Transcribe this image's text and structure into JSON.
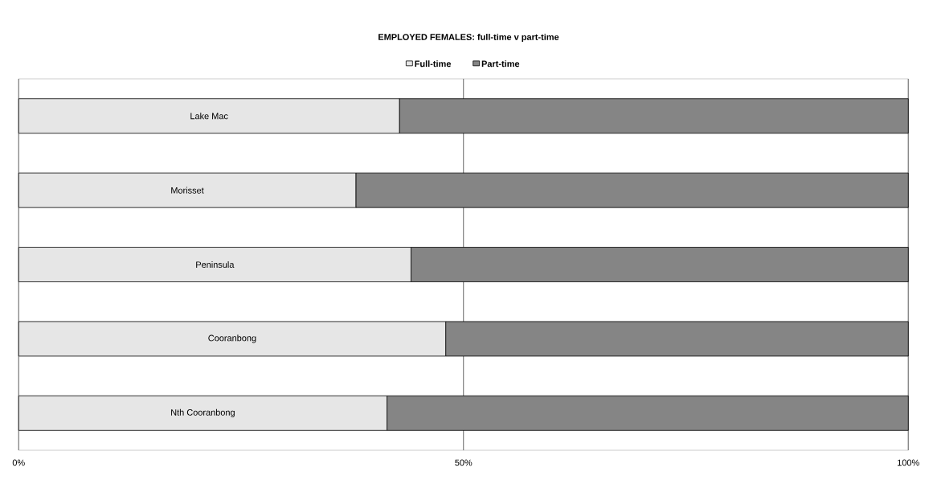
{
  "chart_data": {
    "type": "bar",
    "orientation": "horizontal",
    "stacked": true,
    "title": "EMPLOYED FEMALES:  full-time v part-time",
    "categories": [
      "Lake Mac",
      "Morisset",
      "Peninsula",
      "Cooranbong",
      "Nth Cooranbong"
    ],
    "series": [
      {
        "name": "Full-time",
        "color": "#e6e6e6",
        "values": [
          42.8,
          37.9,
          44.1,
          48.0,
          41.4
        ]
      },
      {
        "name": "Part-time",
        "color": "#858585",
        "values": [
          57.2,
          62.1,
          55.9,
          52.0,
          58.6
        ]
      }
    ],
    "xlim": [
      0,
      100
    ],
    "xticks": [
      {
        "value": 0,
        "label": "0%"
      },
      {
        "value": 50,
        "label": "50%"
      },
      {
        "value": 100,
        "label": "100%"
      }
    ],
    "grid": "x",
    "legend": "top"
  }
}
